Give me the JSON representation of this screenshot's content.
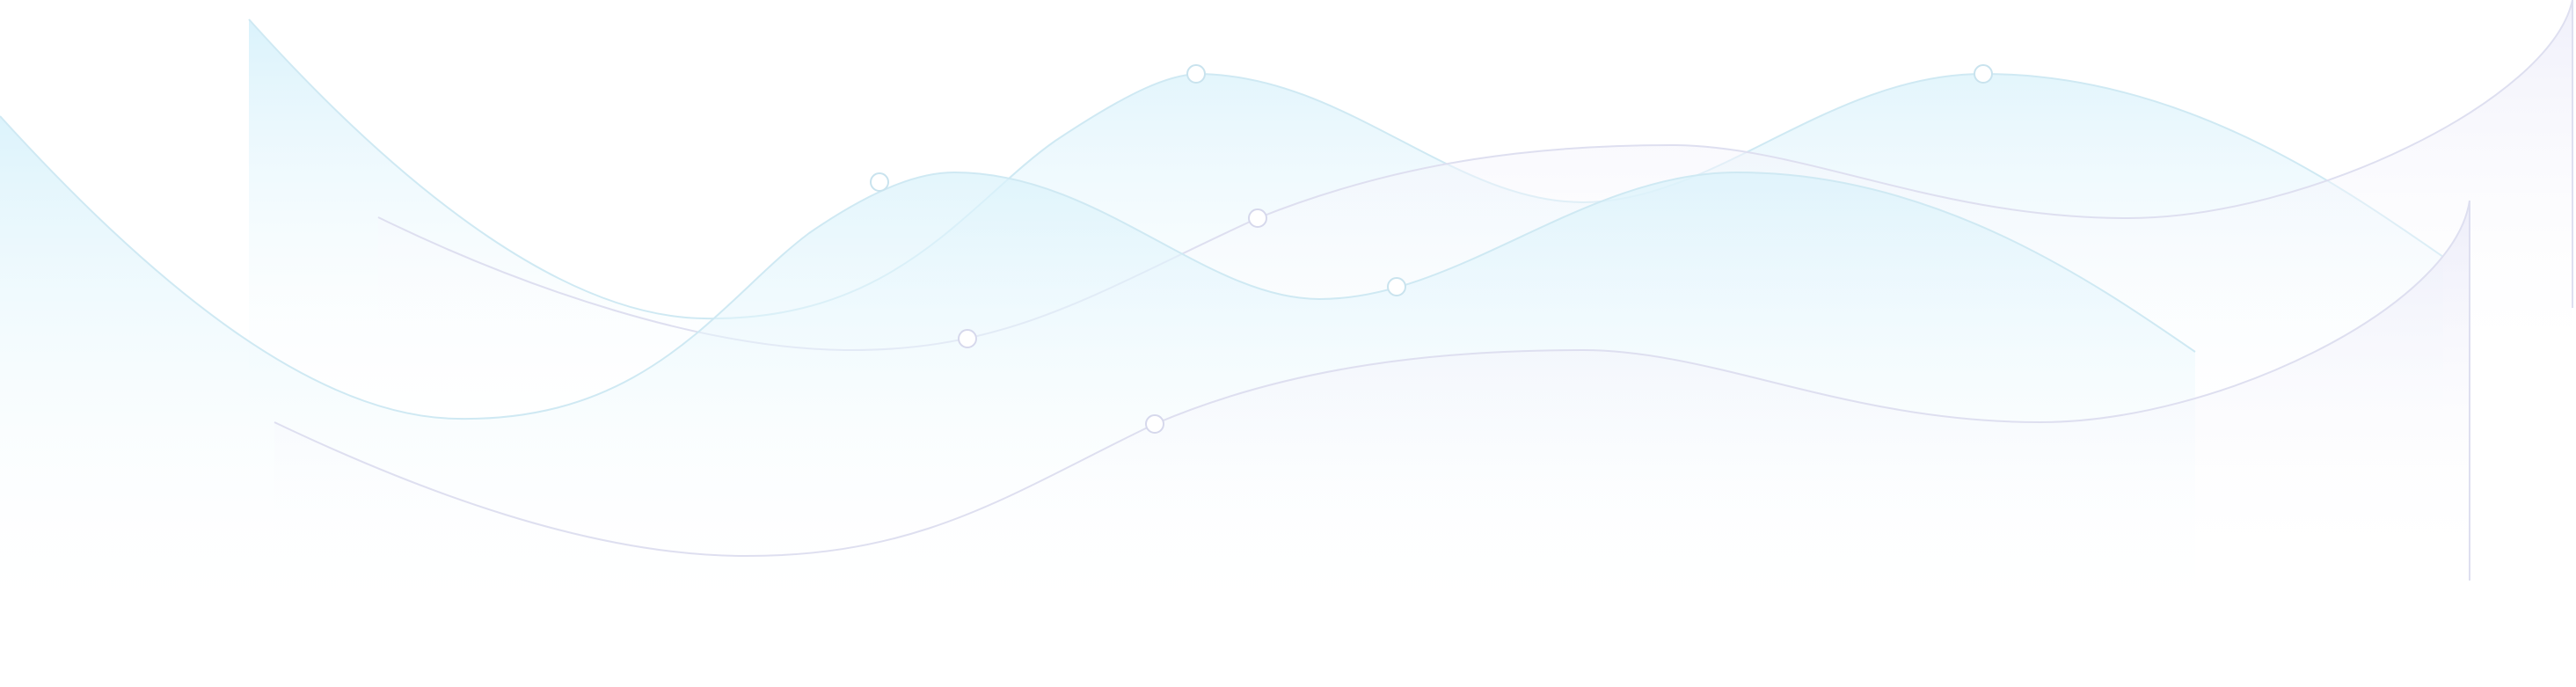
{
  "theme": {
    "background": "#ffffff",
    "cyan": "#d9f2fb",
    "cyan_stroke": "#cfe9f3",
    "lavender": "#efeffb",
    "lavender_stroke": "#dedff0",
    "marker_fill": "#ffffff",
    "marker_stroke": "#c9e3ee"
  },
  "layers": [
    {
      "name": "cyan-wave-back",
      "tint": "cyan"
    },
    {
      "name": "lavender-wave-back",
      "tint": "lavender"
    },
    {
      "name": "cyan-wave-front",
      "tint": "cyan"
    },
    {
      "name": "lavender-wave-front",
      "tint": "lavender"
    }
  ]
}
